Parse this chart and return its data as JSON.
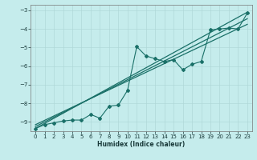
{
  "xlabel": "Humidex (Indice chaleur)",
  "bg_color": "#c5ecec",
  "grid_color": "#b0d8d8",
  "line_color": "#1a7068",
  "xlim": [
    -0.5,
    23.5
  ],
  "ylim": [
    -9.5,
    -2.7
  ],
  "x_ticks": [
    0,
    1,
    2,
    3,
    4,
    5,
    6,
    7,
    8,
    9,
    10,
    11,
    12,
    13,
    14,
    15,
    16,
    17,
    18,
    19,
    20,
    21,
    22,
    23
  ],
  "y_ticks": [
    -9,
    -8,
    -7,
    -6,
    -5,
    -4,
    -3
  ],
  "line1_x": [
    0,
    23
  ],
  "line1_y": [
    -9.35,
    -3.1
  ],
  "line2_x": [
    0,
    23
  ],
  "line2_y": [
    -9.25,
    -3.45
  ],
  "line3_x": [
    0,
    23
  ],
  "line3_y": [
    -9.15,
    -3.75
  ],
  "data_x": [
    0,
    1,
    2,
    3,
    4,
    5,
    6,
    7,
    8,
    9,
    10,
    11,
    12,
    13,
    14,
    15,
    16,
    17,
    18,
    19,
    20,
    21,
    22,
    23
  ],
  "data_y": [
    -9.35,
    -9.15,
    -9.05,
    -8.95,
    -8.9,
    -8.9,
    -8.6,
    -8.8,
    -8.15,
    -8.1,
    -7.3,
    -4.95,
    -5.45,
    -5.6,
    -5.75,
    -5.65,
    -6.2,
    -5.9,
    -5.75,
    -4.05,
    -4.0,
    -3.95,
    -4.0,
    -3.15
  ]
}
